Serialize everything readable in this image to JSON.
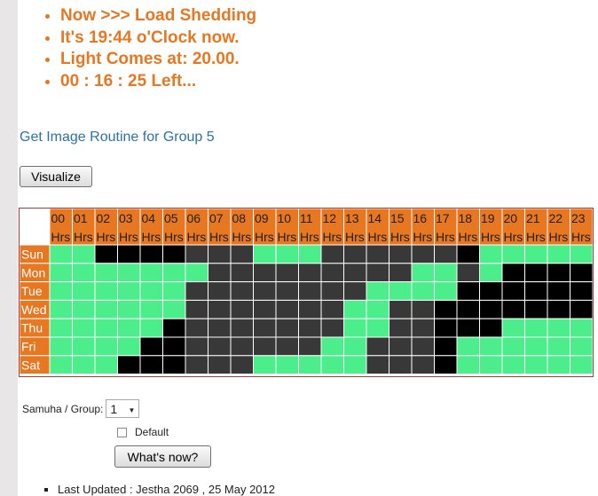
{
  "status": {
    "lines": [
      "Now >>> Load Shedding",
      "It's 19:44 o'Clock now.",
      "Light Comes at: 20.00.",
      "00 : 16 : 25 Left..."
    ]
  },
  "routine": {
    "link_text": "Get Image Routine for Group 5"
  },
  "toolbar": {
    "visualize_label": "Visualize"
  },
  "schedule": {
    "hours": [
      "00",
      "01",
      "02",
      "03",
      "04",
      "05",
      "06",
      "07",
      "08",
      "09",
      "10",
      "11",
      "12",
      "13",
      "14",
      "15",
      "16",
      "17",
      "18",
      "19",
      "20",
      "21",
      "22",
      "23"
    ],
    "hour_suffix": "Hrs",
    "days": [
      "Sun",
      "Mon",
      "Tue",
      "Wed",
      "Thu",
      "Fri",
      "Sat"
    ],
    "legend_codes": {
      "on": "G",
      "off": "D",
      "current": "B"
    },
    "rows": [
      "GGBBBBDDDGGGDDDDDDBGGGGG",
      "GGGGGGGDDDDDDDDDGGDGBBBB",
      "GGGGGGDDDDDDDDGGGGBBBBBB",
      "GGGGGGDDDDDDDGGDDBBBBBBB",
      "GGGGGBDDDDDDDGGDDBBBGGGG",
      "GGGGBBDDDDDDGGDDDBGGGGGG",
      "GGGBBBDDDGGGGGDDDBGGGGGG"
    ],
    "colors": {
      "header_bg": "#e87722",
      "on": "#4cee8c",
      "off": "#383838",
      "current": "#000000",
      "border": "#b33a3a"
    }
  },
  "controls": {
    "group_label": "Samuha / Group:",
    "group_value": "1",
    "default_label": "Default",
    "whats_now_label": "What's now?"
  },
  "footer": {
    "last_updated": "Last Updated : Jestha 2069 , 25 May 2012"
  }
}
